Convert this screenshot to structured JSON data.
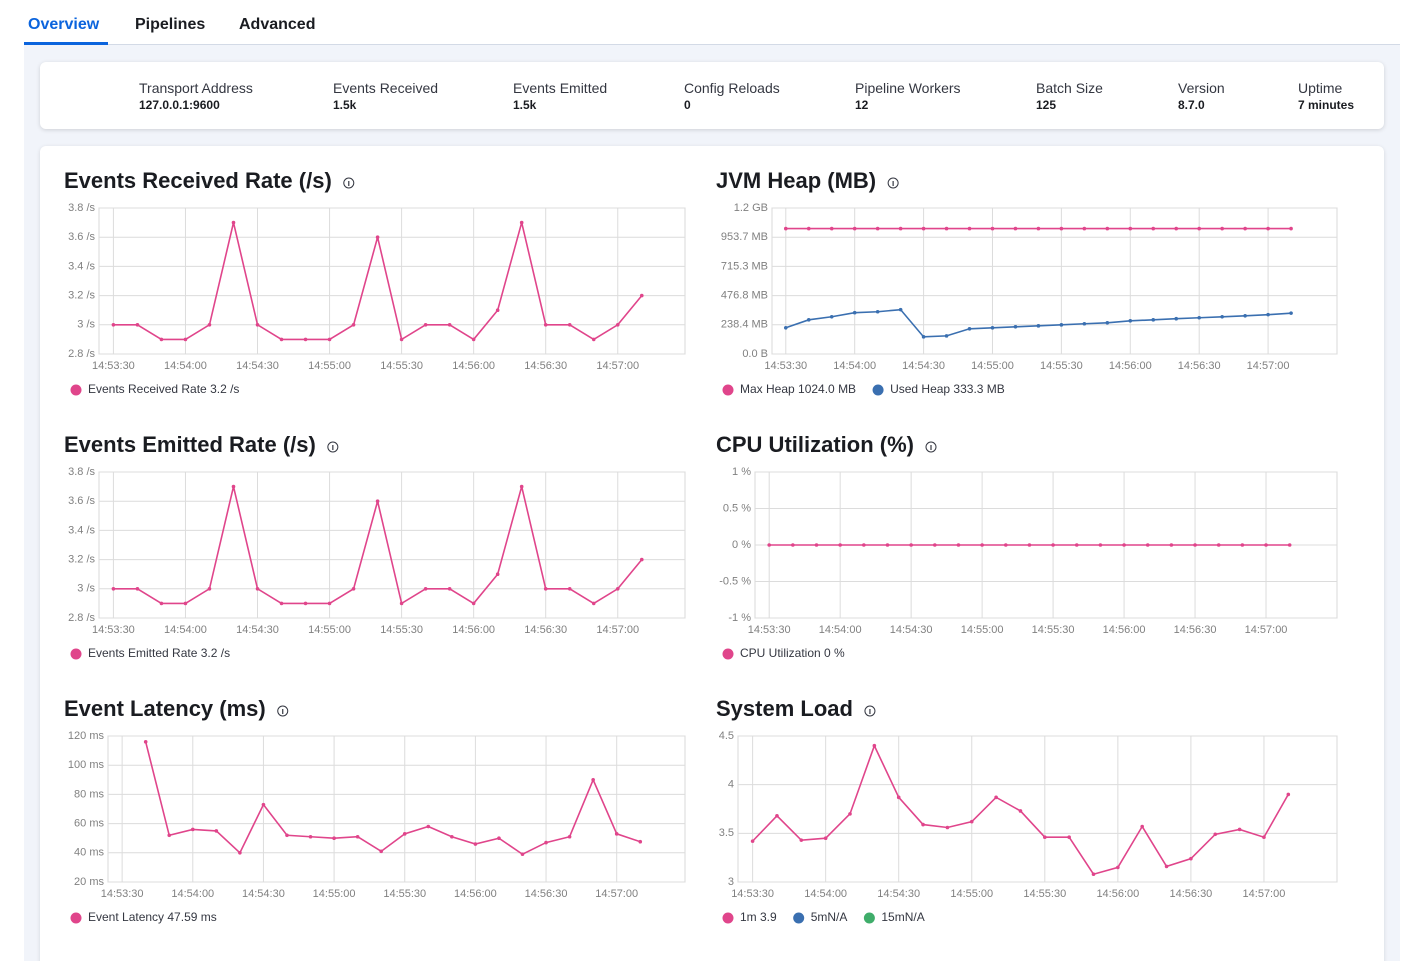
{
  "tabs": [
    "Overview",
    "Pipelines",
    "Advanced"
  ],
  "stats": [
    {
      "label": "Transport Address",
      "value": "127.0.0.1:9600"
    },
    {
      "label": "Events Received",
      "value": "1.5k"
    },
    {
      "label": "Events Emitted",
      "value": "1.5k"
    },
    {
      "label": "Config Reloads",
      "value": "0"
    },
    {
      "label": "Pipeline Workers",
      "value": "12"
    },
    {
      "label": "Batch Size",
      "value": "125"
    },
    {
      "label": "Version",
      "value": "8.7.0"
    },
    {
      "label": "Uptime",
      "value": "7 minutes"
    }
  ],
  "chart_data": [
    {
      "type": "line",
      "title": "Events Received Rate (/s)",
      "grid": true,
      "x": [
        "14:53:30",
        "14:53:40",
        "14:53:50",
        "14:54:00",
        "14:54:10",
        "14:54:20",
        "14:54:30",
        "14:54:40",
        "14:54:50",
        "14:55:00",
        "14:55:10",
        "14:55:20",
        "14:55:30",
        "14:55:40",
        "14:55:50",
        "14:56:00",
        "14:56:10",
        "14:56:20",
        "14:56:30",
        "14:56:40",
        "14:56:50",
        "14:57:00",
        "14:57:10"
      ],
      "xlim": [
        "14:53:24",
        "14:57:28"
      ],
      "xticks": [
        "14:53:30",
        "14:54:00",
        "14:54:30",
        "14:55:00",
        "14:55:30",
        "14:56:00",
        "14:56:30",
        "14:57:00"
      ],
      "ylim": [
        2.8,
        3.8
      ],
      "yticks": [
        {
          "value": 2.8,
          "label": "2.8 /s"
        },
        {
          "value": 3,
          "label": "3 /s"
        },
        {
          "value": 3.2,
          "label": "3.2 /s"
        },
        {
          "value": 3.4,
          "label": "3.4 /s"
        },
        {
          "value": 3.6,
          "label": "3.6 /s"
        },
        {
          "value": 3.8,
          "label": "3.8 /s"
        }
      ],
      "series": [
        {
          "color": "#e0458b",
          "values": [
            3,
            3,
            2.9,
            2.9,
            3,
            3.7,
            3,
            2.9,
            2.9,
            2.9,
            3,
            3.6,
            2.9,
            3,
            3,
            2.9,
            3.1,
            3.7,
            3,
            3,
            2.9,
            3,
            3.2
          ]
        }
      ],
      "legend": [
        {
          "label": "Events Received Rate 3.2 /s",
          "color": "#e0458b"
        }
      ]
    },
    {
      "type": "line",
      "title": "JVM Heap (MB)",
      "grid": true,
      "x": [
        "14:53:30",
        "14:53:40",
        "14:53:50",
        "14:54:00",
        "14:54:10",
        "14:54:20",
        "14:54:30",
        "14:54:40",
        "14:54:50",
        "14:55:00",
        "14:55:10",
        "14:55:20",
        "14:55:30",
        "14:55:40",
        "14:55:50",
        "14:56:00",
        "14:56:10",
        "14:56:20",
        "14:56:30",
        "14:56:40",
        "14:56:50",
        "14:57:00",
        "14:57:10"
      ],
      "xlim": [
        "14:53:24",
        "14:57:30"
      ],
      "xticks": [
        "14:53:30",
        "14:54:00",
        "14:54:30",
        "14:55:00",
        "14:55:30",
        "14:56:00",
        "14:56:30",
        "14:57:00"
      ],
      "ylim": [
        0,
        1192.1
      ],
      "yticks": [
        {
          "value": 0,
          "label": "0.0 B"
        },
        {
          "value": 238.4,
          "label": "238.4 MB"
        },
        {
          "value": 476.8,
          "label": "476.8 MB"
        },
        {
          "value": 715.3,
          "label": "715.3 MB"
        },
        {
          "value": 953.7,
          "label": "953.7 MB"
        },
        {
          "value": 1192.1,
          "label": "1.2 GB"
        }
      ],
      "series": [
        {
          "color": "#e0458b",
          "values": [
            1024,
            1024,
            1024,
            1024,
            1024,
            1024,
            1024,
            1024,
            1024,
            1024,
            1024,
            1024,
            1024,
            1024,
            1024,
            1024,
            1024,
            1024,
            1024,
            1024,
            1024,
            1024,
            1024
          ]
        },
        {
          "color": "#3a6fb0",
          "values": [
            214,
            279,
            304,
            337,
            345,
            362,
            140,
            148,
            206,
            214,
            222,
            230,
            238,
            247,
            255,
            271,
            279,
            288,
            296,
            304,
            312,
            321,
            333.3
          ]
        }
      ],
      "legend": [
        {
          "label": "Max Heap 1024.0 MB",
          "color": "#e0458b"
        },
        {
          "label": "Used Heap 333.3 MB",
          "color": "#3a6fb0"
        }
      ]
    },
    {
      "type": "line",
      "title": "Events Emitted Rate (/s)",
      "grid": true,
      "x": [
        "14:53:30",
        "14:53:40",
        "14:53:50",
        "14:54:00",
        "14:54:10",
        "14:54:20",
        "14:54:30",
        "14:54:40",
        "14:54:50",
        "14:55:00",
        "14:55:10",
        "14:55:20",
        "14:55:30",
        "14:55:40",
        "14:55:50",
        "14:56:00",
        "14:56:10",
        "14:56:20",
        "14:56:30",
        "14:56:40",
        "14:56:50",
        "14:57:00",
        "14:57:10"
      ],
      "xlim": [
        "14:53:24",
        "14:57:28"
      ],
      "xticks": [
        "14:53:30",
        "14:54:00",
        "14:54:30",
        "14:55:00",
        "14:55:30",
        "14:56:00",
        "14:56:30",
        "14:57:00"
      ],
      "ylim": [
        2.8,
        3.8
      ],
      "yticks": [
        {
          "value": 2.8,
          "label": "2.8 /s"
        },
        {
          "value": 3,
          "label": "3 /s"
        },
        {
          "value": 3.2,
          "label": "3.2 /s"
        },
        {
          "value": 3.4,
          "label": "3.4 /s"
        },
        {
          "value": 3.6,
          "label": "3.6 /s"
        },
        {
          "value": 3.8,
          "label": "3.8 /s"
        }
      ],
      "series": [
        {
          "color": "#e0458b",
          "values": [
            3,
            3,
            2.9,
            2.9,
            3,
            3.7,
            3,
            2.9,
            2.9,
            2.9,
            3,
            3.6,
            2.9,
            3,
            3,
            2.9,
            3.1,
            3.7,
            3,
            3,
            2.9,
            3,
            3.2
          ]
        }
      ],
      "legend": [
        {
          "label": "Events Emitted Rate 3.2 /s",
          "color": "#e0458b"
        }
      ]
    },
    {
      "type": "line",
      "title": "CPU Utilization (%)",
      "grid": true,
      "x": [
        "14:53:30",
        "14:53:40",
        "14:53:50",
        "14:54:00",
        "14:54:10",
        "14:54:20",
        "14:54:30",
        "14:54:40",
        "14:54:50",
        "14:55:00",
        "14:55:10",
        "14:55:20",
        "14:55:30",
        "14:55:40",
        "14:55:50",
        "14:56:00",
        "14:56:10",
        "14:56:20",
        "14:56:30",
        "14:56:40",
        "14:56:50",
        "14:57:00",
        "14:57:10"
      ],
      "xlim": [
        "14:53:24",
        "14:57:30"
      ],
      "xticks": [
        "14:53:30",
        "14:54:00",
        "14:54:30",
        "14:55:00",
        "14:55:30",
        "14:56:00",
        "14:56:30",
        "14:57:00"
      ],
      "ylim": [
        -1,
        1
      ],
      "yticks": [
        {
          "value": -1,
          "label": "-1 %"
        },
        {
          "value": -0.5,
          "label": "-0.5 %"
        },
        {
          "value": 0,
          "label": "0 %"
        },
        {
          "value": 0.5,
          "label": "0.5 %"
        },
        {
          "value": 1,
          "label": "1 %"
        }
      ],
      "series": [
        {
          "color": "#e0458b",
          "values": [
            0,
            0,
            0,
            0,
            0,
            0,
            0,
            0,
            0,
            0,
            0,
            0,
            0,
            0,
            0,
            0,
            0,
            0,
            0,
            0,
            0,
            0,
            0
          ]
        }
      ],
      "legend": [
        {
          "label": "CPU Utilization 0 %",
          "color": "#e0458b"
        }
      ]
    },
    {
      "type": "line",
      "title": "Event Latency (ms)",
      "grid": true,
      "x": [
        "14:53:40",
        "14:53:50",
        "14:54:00",
        "14:54:10",
        "14:54:20",
        "14:54:30",
        "14:54:40",
        "14:54:50",
        "14:55:00",
        "14:55:10",
        "14:55:20",
        "14:55:30",
        "14:55:40",
        "14:55:50",
        "14:56:00",
        "14:56:10",
        "14:56:20",
        "14:56:30",
        "14:56:40",
        "14:56:50",
        "14:57:00",
        "14:57:10"
      ],
      "xlim": [
        "14:53:24",
        "14:57:29"
      ],
      "xticks": [
        "14:53:30",
        "14:54:00",
        "14:54:30",
        "14:55:00",
        "14:55:30",
        "14:56:00",
        "14:56:30",
        "14:57:00"
      ],
      "ylim": [
        20,
        120
      ],
      "yticks": [
        {
          "value": 20,
          "label": "20 ms"
        },
        {
          "value": 40,
          "label": "40 ms"
        },
        {
          "value": 60,
          "label": "60 ms"
        },
        {
          "value": 80,
          "label": "80 ms"
        },
        {
          "value": 100,
          "label": "100 ms"
        },
        {
          "value": 120,
          "label": "120 ms"
        }
      ],
      "series": [
        {
          "color": "#e0458b",
          "values": [
            116,
            52,
            56,
            55,
            40,
            73,
            52,
            51,
            50,
            51,
            41,
            53,
            58,
            51,
            46,
            50,
            39,
            47,
            51,
            90,
            53,
            47.59
          ]
        }
      ],
      "legend": [
        {
          "label": "Event Latency 47.59 ms",
          "color": "#e0458b"
        }
      ]
    },
    {
      "type": "line",
      "title": "System Load",
      "grid": true,
      "x": [
        "14:53:30",
        "14:53:40",
        "14:53:50",
        "14:54:00",
        "14:54:10",
        "14:54:20",
        "14:54:30",
        "14:54:40",
        "14:54:50",
        "14:55:00",
        "14:55:10",
        "14:55:20",
        "14:55:30",
        "14:55:40",
        "14:55:50",
        "14:56:00",
        "14:56:10",
        "14:56:20",
        "14:56:30",
        "14:56:40",
        "14:56:50",
        "14:57:00",
        "14:57:10"
      ],
      "xlim": [
        "14:53:24",
        "14:57:30"
      ],
      "xticks": [
        "14:53:30",
        "14:54:00",
        "14:54:30",
        "14:55:00",
        "14:55:30",
        "14:56:00",
        "14:56:30",
        "14:57:00"
      ],
      "ylim": [
        3,
        4.5
      ],
      "yticks": [
        3,
        3.5,
        4,
        4.5
      ],
      "series": [
        {
          "color": "#e0458b",
          "values": [
            3.42,
            3.68,
            3.43,
            3.45,
            3.7,
            4.4,
            3.87,
            3.59,
            3.56,
            3.62,
            3.87,
            3.73,
            3.46,
            3.46,
            3.08,
            3.15,
            3.57,
            3.16,
            3.24,
            3.49,
            3.54,
            3.46,
            3.9
          ]
        }
      ],
      "legend": [
        {
          "label": "1m 3.9",
          "color": "#e0458b"
        },
        {
          "label": "5mN/A",
          "color": "#3a6fb0"
        },
        {
          "label": "15mN/A",
          "color": "#3fad6a"
        }
      ]
    }
  ]
}
